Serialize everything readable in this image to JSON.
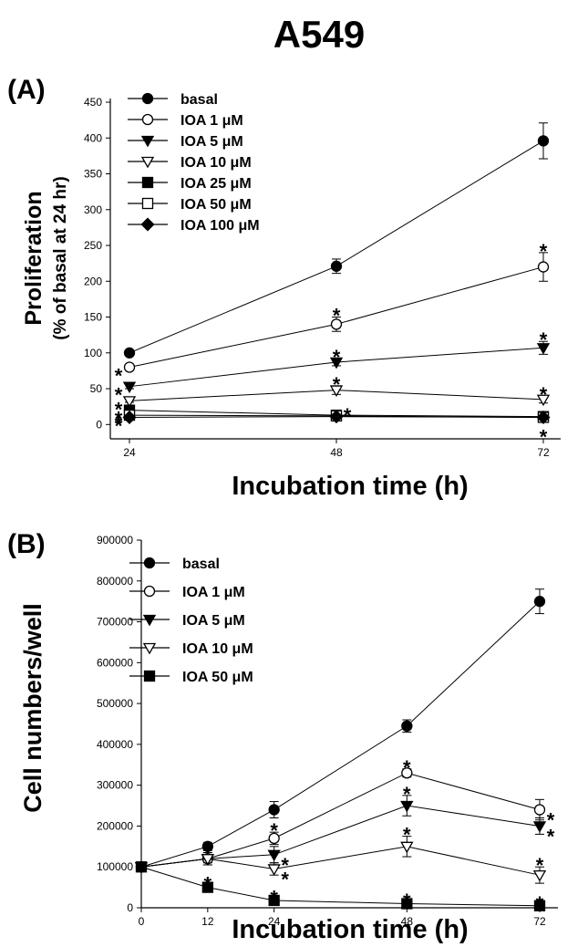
{
  "page_title": "A549",
  "chart_data": [
    {
      "type": "line",
      "panel_label": "(A)",
      "xlabel": "Incubation time (h)",
      "ylabel": "Proliferation",
      "ylabel_sub": "(% of basal at 24 hr)",
      "x": [
        24,
        48,
        72
      ],
      "xticks": [
        "24",
        "48",
        "72"
      ],
      "xlim": [
        24,
        72
      ],
      "ylim": [
        -20,
        450
      ],
      "yticks": [
        "0",
        "50",
        "100",
        "150",
        "200",
        "250",
        "300",
        "350",
        "400",
        "450"
      ],
      "legend_position": "top-left",
      "series": [
        {
          "name": "basal",
          "marker": "circle-filled",
          "values": [
            100,
            221,
            396
          ],
          "errors": [
            4,
            10,
            25
          ],
          "sig": [
            false,
            false,
            false
          ]
        },
        {
          "name": "IOA 1 μM",
          "marker": "circle-open",
          "values": [
            80,
            140,
            220
          ],
          "errors": [
            3,
            10,
            20
          ],
          "sig": [
            true,
            true,
            true
          ]
        },
        {
          "name": "IOA 5 μM",
          "marker": "triangle-down-filled",
          "values": [
            53,
            87,
            107
          ],
          "errors": [
            3,
            5,
            9
          ],
          "sig": [
            true,
            true,
            true
          ]
        },
        {
          "name": "IOA 10 μM",
          "marker": "triangle-down-open",
          "values": [
            33,
            48,
            35
          ],
          "errors": [
            2,
            6,
            5
          ],
          "sig": [
            true,
            true,
            true
          ]
        },
        {
          "name": "IOA 25 μM",
          "marker": "square-filled",
          "values": [
            20,
            13,
            11
          ],
          "errors": [
            2,
            2,
            2
          ],
          "sig": [
            true,
            false,
            false
          ]
        },
        {
          "name": "IOA 50 μM",
          "marker": "square-open",
          "values": [
            13,
            12,
            10
          ],
          "errors": [
            2,
            2,
            2
          ],
          "sig": [
            true,
            true,
            false
          ]
        },
        {
          "name": "IOA 100 μM",
          "marker": "diamond-filled",
          "values": [
            10,
            11,
            10
          ],
          "errors": [
            2,
            2,
            2
          ],
          "sig": [
            true,
            false,
            true
          ]
        }
      ]
    },
    {
      "type": "line",
      "panel_label": "(B)",
      "xlabel": "Incubation time (h)",
      "ylabel": "Cell numbers/well",
      "x": [
        0,
        12,
        24,
        48,
        72
      ],
      "xticks": [
        "0",
        "12",
        "24",
        "48",
        "72"
      ],
      "xlim": [
        0,
        72
      ],
      "ylim": [
        0,
        900000
      ],
      "yticks": [
        "0",
        "100000",
        "200000",
        "300000",
        "400000",
        "500000",
        "600000",
        "700000",
        "800000",
        "900000"
      ],
      "legend_position": "top-left",
      "series": [
        {
          "name": "basal",
          "marker": "circle-filled",
          "values": [
            100000,
            150000,
            240000,
            445000,
            750000
          ],
          "errors": [
            5000,
            10000,
            20000,
            15000,
            30000
          ],
          "sig": [
            false,
            false,
            false,
            false,
            false
          ],
          "sig_side": [
            "",
            "",
            "",
            "",
            ""
          ]
        },
        {
          "name": "IOA 1 μM",
          "marker": "circle-open",
          "values": [
            100000,
            120000,
            170000,
            330000,
            240000
          ],
          "errors": [
            5000,
            10000,
            15000,
            10000,
            25000
          ],
          "sig": [
            false,
            false,
            true,
            true,
            true
          ],
          "sig_side": [
            "",
            "",
            "above",
            "above",
            "right"
          ]
        },
        {
          "name": "IOA 5 μM",
          "marker": "triangle-down-filled",
          "values": [
            100000,
            120000,
            130000,
            250000,
            200000
          ],
          "errors": [
            5000,
            15000,
            20000,
            25000,
            20000
          ],
          "sig": [
            false,
            false,
            true,
            true,
            true
          ],
          "sig_side": [
            "",
            "",
            "right",
            "above",
            "right"
          ]
        },
        {
          "name": "IOA 10 μM",
          "marker": "triangle-down-open",
          "values": [
            100000,
            120000,
            95000,
            150000,
            80000
          ],
          "errors": [
            5000,
            15000,
            15000,
            25000,
            20000
          ],
          "sig": [
            false,
            false,
            true,
            true,
            true
          ],
          "sig_side": [
            "",
            "",
            "right",
            "above",
            "above"
          ]
        },
        {
          "name": "IOA 50 μM",
          "marker": "square-filled",
          "values": [
            100000,
            50000,
            18000,
            10000,
            5000
          ],
          "errors": [
            5000,
            5000,
            3000,
            3000,
            2000
          ],
          "sig": [
            false,
            true,
            true,
            true,
            true
          ],
          "sig_side": [
            "",
            "above",
            "above",
            "above",
            "above"
          ]
        }
      ]
    }
  ]
}
